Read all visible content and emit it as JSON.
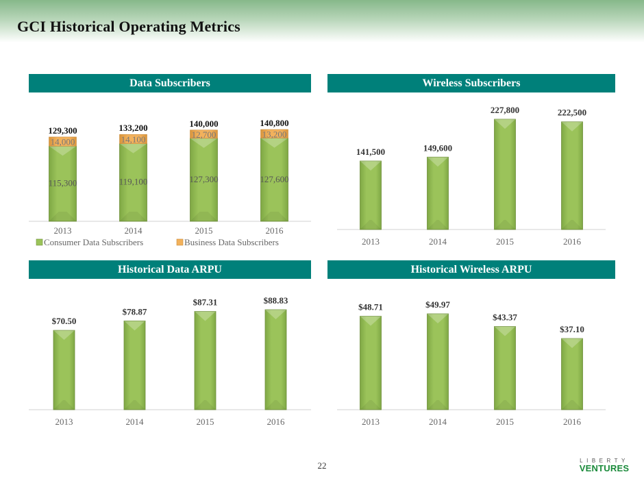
{
  "page": {
    "title": "GCI Historical Operating Metrics",
    "page_number": "22",
    "logo": {
      "line1": "LIBERTY",
      "line2": "VENTURES"
    }
  },
  "colors": {
    "header_bg": "#00807a",
    "bar_green": "#9bc35a",
    "bar_orange": "#f2b15c",
    "axis": "#d9d9d9"
  },
  "panels": {
    "data_subscribers": {
      "header": "Data Subscribers"
    },
    "wireless_subscribers": {
      "header": "Wireless Subscribers"
    },
    "data_arpu": {
      "header": "Historical Data ARPU"
    },
    "wireless_arpu": {
      "header": "Historical Wireless ARPU"
    }
  },
  "chart_data": [
    {
      "id": "data_subscribers",
      "type": "bar",
      "stacked": true,
      "title": "Data Subscribers",
      "categories": [
        "2013",
        "2014",
        "2015",
        "2016"
      ],
      "series": [
        {
          "name": "Consumer Data Subscribers",
          "values": [
            115300,
            119100,
            127300,
            127600
          ],
          "labels": [
            "115,300",
            "119,100",
            "127,300",
            "127,600"
          ]
        },
        {
          "name": "Business Data Subscribers",
          "values": [
            14000,
            14100,
            12700,
            13200
          ],
          "labels": [
            "14,000",
            "14,100",
            "12,700",
            "13,200"
          ]
        }
      ],
      "totals": [
        "129,300",
        "133,200",
        "140,000",
        "140,800"
      ],
      "legend": "bottom",
      "grid": false
    },
    {
      "id": "wireless_subscribers",
      "type": "bar",
      "title": "Wireless Subscribers",
      "categories": [
        "2013",
        "2014",
        "2015",
        "2016"
      ],
      "values": [
        141500,
        149600,
        227800,
        222500
      ],
      "labels": [
        "141,500",
        "149,600",
        "227,800",
        "222,500"
      ],
      "grid": false
    },
    {
      "id": "data_arpu",
      "type": "bar",
      "title": "Historical Data ARPU",
      "categories": [
        "2013",
        "2014",
        "2015",
        "2016"
      ],
      "values": [
        70.5,
        78.87,
        87.31,
        88.83
      ],
      "labels": [
        "$70.50",
        "$78.87",
        "$87.31",
        "$88.83"
      ],
      "grid": false
    },
    {
      "id": "wireless_arpu",
      "type": "bar",
      "title": "Historical Wireless ARPU",
      "categories": [
        "2013",
        "2014",
        "2015",
        "2016"
      ],
      "values": [
        48.71,
        49.97,
        43.37,
        37.1
      ],
      "labels": [
        "$48.71",
        "$49.97",
        "$43.37",
        "$37.10"
      ],
      "grid": false
    }
  ]
}
